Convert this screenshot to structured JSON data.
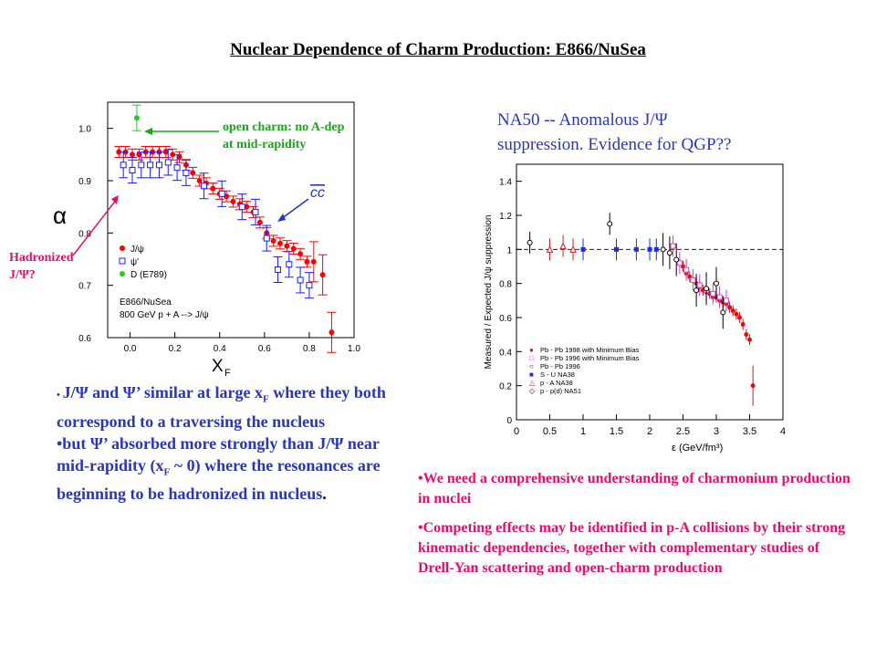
{
  "title": "Nuclear Dependence of Charm Production: E866/NuSea",
  "left_plot": {
    "alpha_symbol": "α",
    "open_charm_note": [
      "open charm: no A-dep",
      "at mid-rapidity"
    ],
    "hadronized_note": [
      "Hadronized",
      "J/Ψ?"
    ],
    "cc_label": "cc",
    "xlabel": "X",
    "xlabel_sub": "F",
    "legend": [
      "J/ψ",
      "ψ'",
      "D (E789)"
    ],
    "experiment": "E866/NuSea",
    "beam": "800 GeV p + A --> J/ψ",
    "colors": {
      "jpsi": "#ff0000",
      "psip": "#1a1aff",
      "open_charm": "#22cc22",
      "arrow_green": "#1aa51a",
      "arrow_red": "#e0106e",
      "arrow_blue": "#2233cc"
    }
  },
  "right_title": [
    "NA50 -- Anomalous J/Ψ",
    "suppression. Evidence for QGP??"
  ],
  "right_plot": {
    "ylabel": "Measured / Expected  J/ψ suppression",
    "xlabel": "ε (GeV/fm³)",
    "legend": [
      {
        "symbol": "●",
        "label": "Pb - Pb 1998 with Minimum Bias",
        "color": "#dd1111"
      },
      {
        "symbol": "□",
        "label": "Pb - Pb 1996 with Minimum Bias",
        "color": "#cc44cc"
      },
      {
        "symbol": "○",
        "label": "Pb - Pb 1996",
        "color": "#000000"
      },
      {
        "symbol": "■",
        "label": "S - U     NA38",
        "color": "#1a2aff"
      },
      {
        "symbol": "△",
        "label": "p - A     NA38",
        "color": "#cc2222"
      },
      {
        "symbol": "◇",
        "label": "p - p(d)  NA51",
        "color": "#000000"
      }
    ]
  },
  "chart_data": [
    {
      "type": "scatter",
      "xlabel": "XF",
      "ylabel": "α",
      "xlim": [
        -0.1,
        1.0
      ],
      "ylim": [
        0.6,
        1.05
      ],
      "xticks": [
        "0.0",
        "0.2",
        "0.4",
        "0.6",
        "0.8",
        "1.0"
      ],
      "yticks": [
        "0.6",
        "0.7",
        "0.8",
        "0.9",
        "1.0"
      ],
      "series": [
        {
          "name": "J/ψ",
          "x": [
            -0.05,
            -0.02,
            0.01,
            0.04,
            0.07,
            0.1,
            0.13,
            0.16,
            0.19,
            0.22,
            0.25,
            0.28,
            0.31,
            0.34,
            0.37,
            0.4,
            0.43,
            0.46,
            0.49,
            0.52,
            0.55,
            0.58,
            0.61,
            0.64,
            0.67,
            0.7,
            0.73,
            0.76,
            0.79,
            0.82,
            0.86,
            0.9
          ],
          "y": [
            0.955,
            0.955,
            0.95,
            0.95,
            0.955,
            0.955,
            0.955,
            0.955,
            0.95,
            0.945,
            0.93,
            0.915,
            0.9,
            0.895,
            0.885,
            0.875,
            0.87,
            0.86,
            0.855,
            0.85,
            0.84,
            0.82,
            0.8,
            0.785,
            0.78,
            0.775,
            0.77,
            0.76,
            0.745,
            0.745,
            0.72,
            0.61
          ]
        },
        {
          "name": "ψ'",
          "x": [
            -0.03,
            0.01,
            0.05,
            0.09,
            0.13,
            0.17,
            0.21,
            0.25,
            0.33,
            0.41,
            0.5,
            0.56,
            0.61,
            0.66,
            0.71,
            0.76,
            0.8
          ],
          "y": [
            0.93,
            0.92,
            0.93,
            0.93,
            0.93,
            0.935,
            0.925,
            0.915,
            0.89,
            0.875,
            0.85,
            0.84,
            0.79,
            0.73,
            0.74,
            0.71,
            0.7
          ]
        },
        {
          "name": "D (E789)",
          "x": [
            0.03
          ],
          "y": [
            1.02
          ]
        }
      ]
    },
    {
      "type": "scatter",
      "xlabel": "ε (GeV/fm³)",
      "ylabel": "Measured / Expected J/ψ suppression",
      "xlim": [
        0,
        4
      ],
      "ylim": [
        0,
        1.5
      ],
      "xticks": [
        "0",
        "0.5",
        "1",
        "1.5",
        "2",
        "2.5",
        "3",
        "3.5",
        "4"
      ],
      "yticks": [
        "0",
        "0.2",
        "0.4",
        "0.6",
        "0.8",
        "1",
        "1.2",
        "1.4"
      ],
      "reference_line": 1,
      "series": [
        {
          "name": "Pb - Pb 1998 with Minimum Bias",
          "x": [
            2.5,
            2.55,
            2.6,
            2.65,
            2.7,
            2.75,
            2.8,
            2.85,
            2.9,
            2.95,
            3.0,
            3.05,
            3.1,
            3.15,
            3.2,
            3.25,
            3.3,
            3.35,
            3.4,
            3.45,
            3.5,
            3.55
          ],
          "y": [
            0.9,
            0.86,
            0.84,
            0.82,
            0.8,
            0.78,
            0.76,
            0.75,
            0.74,
            0.72,
            0.72,
            0.7,
            0.69,
            0.68,
            0.66,
            0.64,
            0.62,
            0.6,
            0.56,
            0.5,
            0.47,
            0.2
          ]
        },
        {
          "name": "Pb - Pb 1996 with Minimum Bias",
          "x": [
            2.35,
            2.45,
            2.55,
            2.65,
            2.75,
            2.85,
            2.95,
            3.05,
            3.15
          ],
          "y": [
            1.02,
            0.92,
            0.88,
            0.82,
            0.79,
            0.76,
            0.74,
            0.72,
            0.7
          ]
        },
        {
          "name": "Pb - Pb 1996",
          "x": [
            2.2,
            2.3,
            2.4,
            2.7,
            2.85,
            3.0,
            3.1
          ],
          "y": [
            1.0,
            0.98,
            0.94,
            0.76,
            0.77,
            0.8,
            0.63
          ]
        },
        {
          "name": "S - U     NA38",
          "x": [
            1.0,
            1.5,
            1.8,
            2.0,
            2.1
          ],
          "y": [
            1.0,
            1.0,
            1.0,
            1.0,
            1.0
          ]
        },
        {
          "name": "p - A     NA38",
          "x": [
            0.5,
            0.7,
            0.85
          ],
          "y": [
            1.0,
            1.02,
            1.0
          ]
        },
        {
          "name": "p - p(d)  NA51",
          "x": [
            0.2,
            1.4
          ],
          "y": [
            1.04,
            1.15
          ]
        }
      ]
    }
  ],
  "bullets_left": [
    "J/Ψ and Ψ’ similar at large xF where they both correspond to a traversing the nucleus",
    "but Ψ’ absorbed more strongly than J/Ψ  near mid-rapidity (xF ~ 0) where the resonances are beginning to be hadronized in nucleus."
  ],
  "bullets_right": [
    "We need a comprehensive understanding of charmonium production in nuclei",
    "Competing effects may be identified in p-A collisions by their strong kinematic dependencies, together with complementary studies of Drell-Yan scattering and open-charm production"
  ]
}
